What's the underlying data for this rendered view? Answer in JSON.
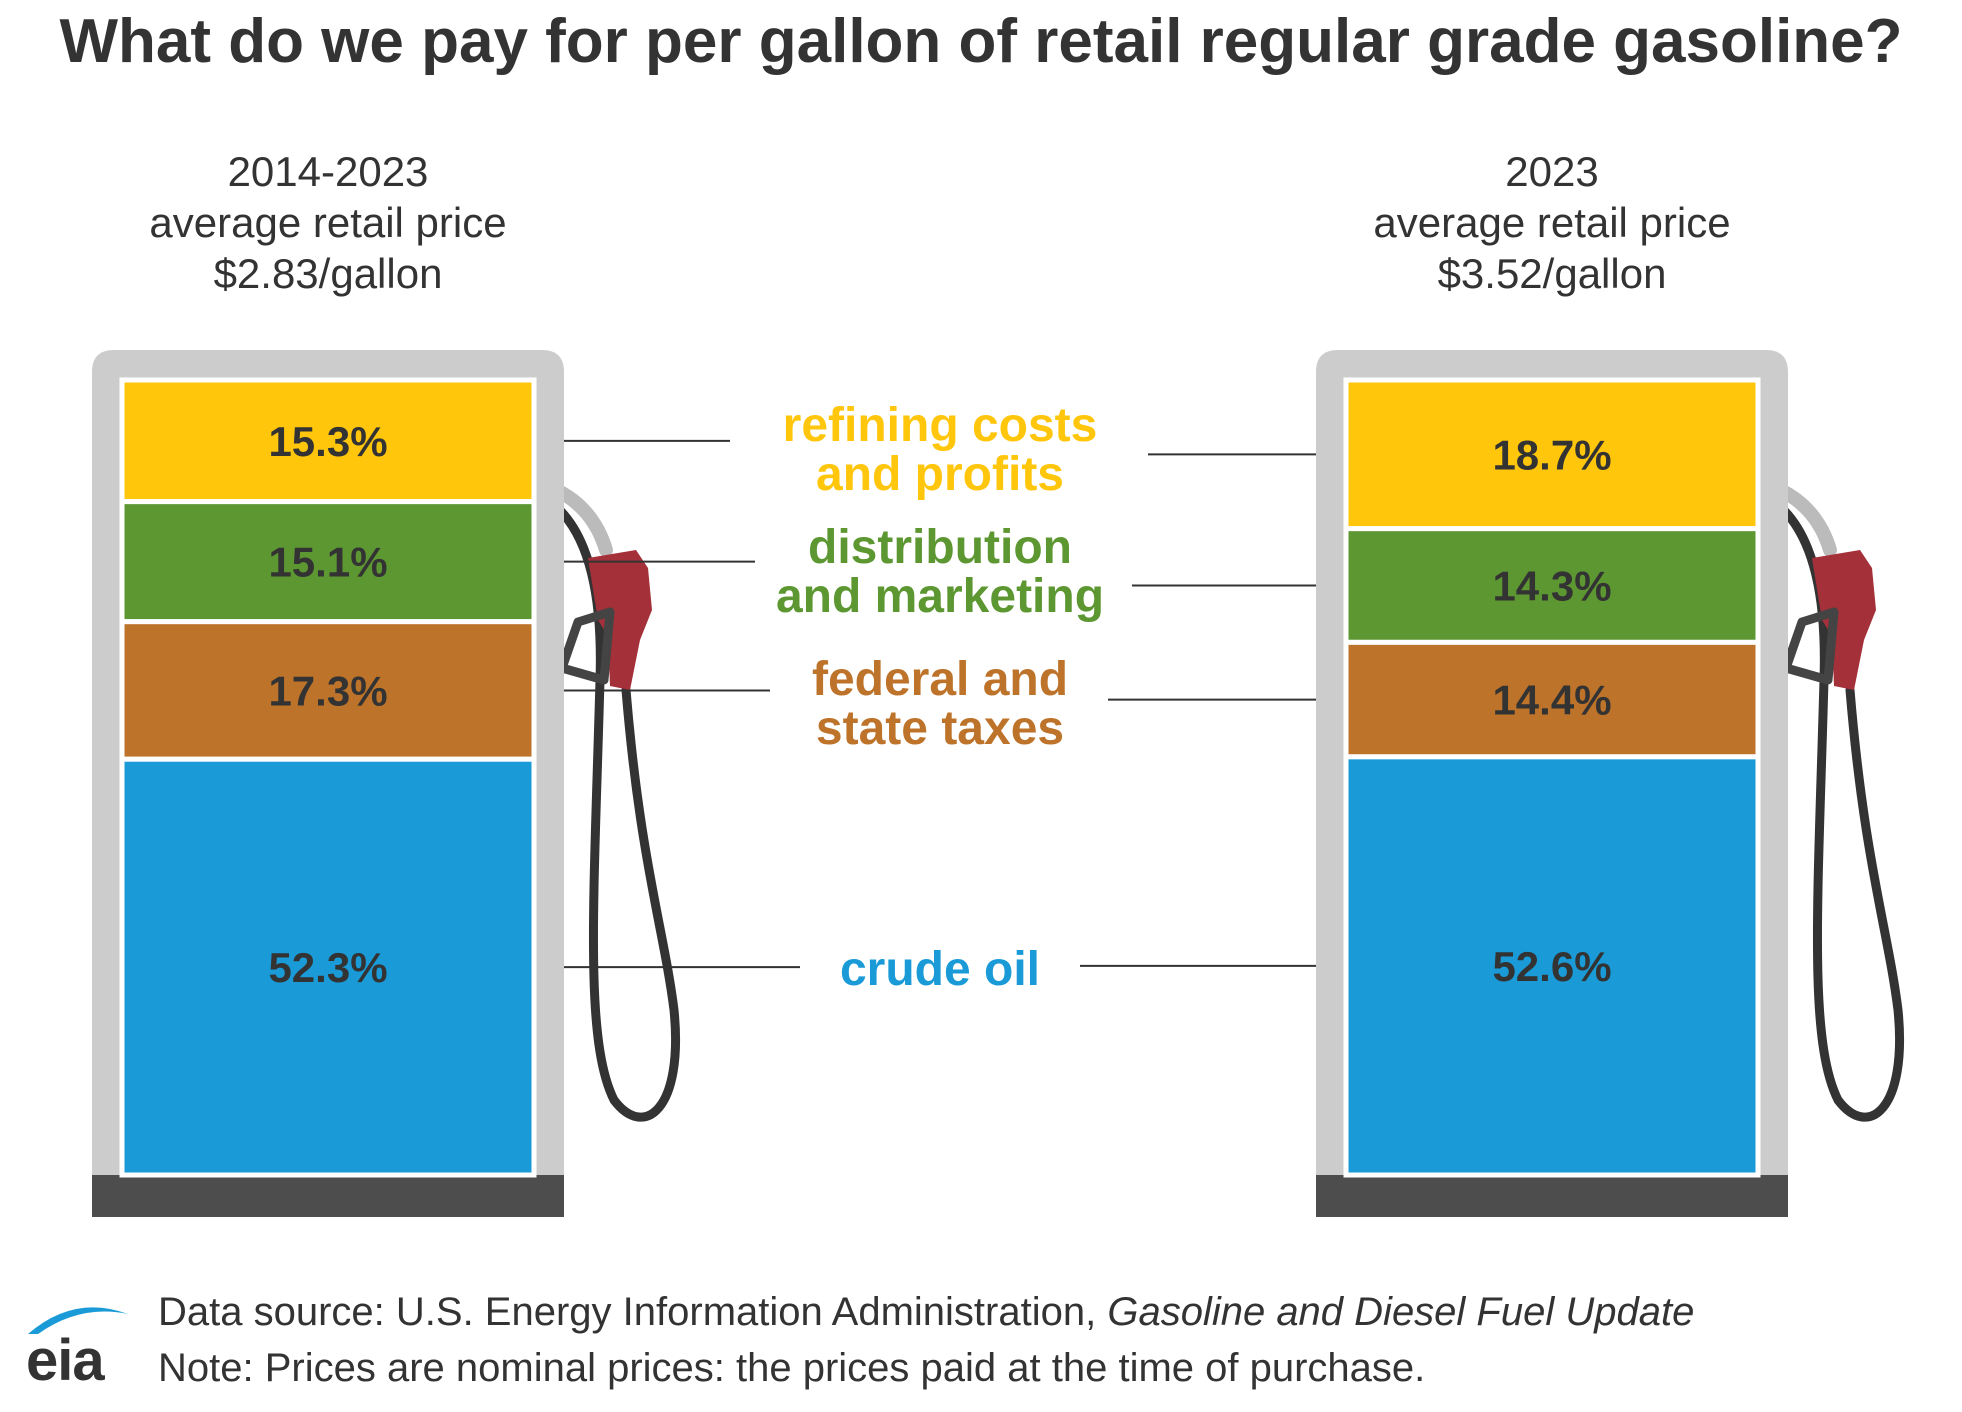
{
  "title": "What do we pay for per gallon of retail regular grade gasoline?",
  "pumps": [
    {
      "period": "2014-2023",
      "subtitle": "average retail price",
      "price": "$2.83/gallon",
      "segments": [
        {
          "name": "refining costs and profits",
          "value": 15.3,
          "label": "15.3%"
        },
        {
          "name": "distribution and marketing",
          "value": 15.1,
          "label": "15.1%"
        },
        {
          "name": "federal and state taxes",
          "value": 17.3,
          "label": "17.3%"
        },
        {
          "name": "crude oil",
          "value": 52.3,
          "label": "52.3%"
        }
      ]
    },
    {
      "period": "2023",
      "subtitle": "average retail price",
      "price": "$3.52/gallon",
      "segments": [
        {
          "name": "refining costs and profits",
          "value": 18.7,
          "label": "18.7%"
        },
        {
          "name": "distribution and marketing",
          "value": 14.3,
          "label": "14.3%"
        },
        {
          "name": "federal and state taxes",
          "value": 14.4,
          "label": "14.4%"
        },
        {
          "name": "crude oil",
          "value": 52.6,
          "label": "52.6%"
        }
      ]
    }
  ],
  "components": [
    {
      "line1": "refining costs",
      "line2": "and profits",
      "color": "#FFC60B"
    },
    {
      "line1": "distribution",
      "line2": "and marketing",
      "color": "#5D9732"
    },
    {
      "line1": "federal and",
      "line2": "state taxes",
      "color": "#BD732A"
    },
    {
      "line1": "crude oil",
      "line2": "",
      "color": "#1A9BD7"
    }
  ],
  "chart_data": {
    "type": "bar",
    "stacked": true,
    "categories": [
      "2014-2023",
      "2023"
    ],
    "series": [
      {
        "name": "refining costs and profits",
        "values": [
          15.3,
          18.7
        ]
      },
      {
        "name": "distribution and marketing",
        "values": [
          15.1,
          14.3
        ]
      },
      {
        "name": "federal and state taxes",
        "values": [
          17.3,
          14.4
        ]
      },
      {
        "name": "crude oil",
        "values": [
          52.3,
          52.6
        ]
      }
    ],
    "unit": "%",
    "title": "What do we pay for per gallon of retail regular grade gasoline?"
  },
  "footer": {
    "source_prefix": "Data source: U.S. Energy Information Administration, ",
    "source_publication": "Gasoline and Diesel Fuel Update",
    "note": "Note: Prices are nominal prices: the prices paid at the time of purchase."
  },
  "logo": {
    "text": "eia",
    "color": "#1A9BD7"
  },
  "colors": {
    "pump_frame": "#CCCCCC",
    "pump_base": "#4D4D4D",
    "nozzle": "#A4303A",
    "hose": "#333333",
    "connector": "#333333"
  }
}
